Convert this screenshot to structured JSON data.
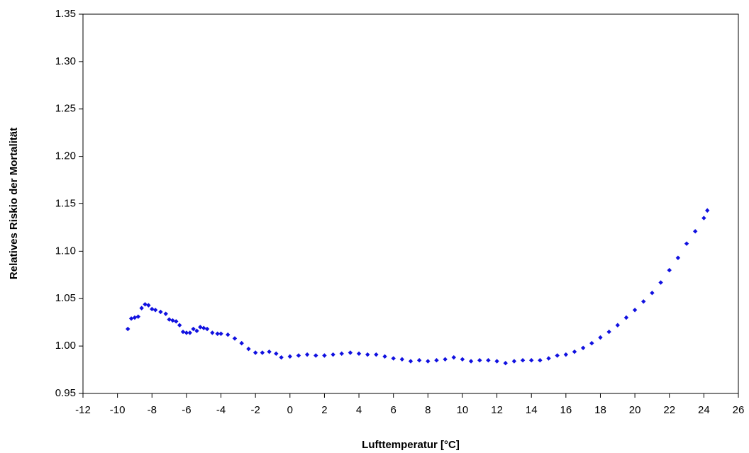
{
  "chart_data": {
    "type": "scatter",
    "xlabel": "Lufttemperatur [°C]",
    "ylabel": "Relatives Riskio der Mortalität",
    "color": "#1010e0",
    "xlim": [
      -12,
      26
    ],
    "xticks": [
      -12,
      -10,
      -8,
      -6,
      -4,
      -2,
      0,
      2,
      4,
      6,
      8,
      10,
      12,
      14,
      16,
      18,
      20,
      22,
      24,
      26
    ],
    "ylim": [
      0.95,
      1.35
    ],
    "yticks": [
      0.95,
      {
        "value": 1.0,
        "label": "1.00"
      },
      1.05,
      {
        "value": 1.1,
        "label": "1.10"
      },
      1.15,
      {
        "value": 1.2,
        "label": "1.20"
      },
      1.25,
      {
        "value": 1.3,
        "label": "1.30"
      },
      1.35
    ],
    "grid": false,
    "x": [
      -9.4,
      -9.2,
      -9.0,
      -8.8,
      -8.6,
      -8.4,
      -8.2,
      -8.0,
      -7.8,
      -7.5,
      -7.2,
      -7.0,
      -6.8,
      -6.6,
      -6.4,
      -6.2,
      -6.0,
      -5.8,
      -5.6,
      -5.4,
      -5.2,
      -5.0,
      -4.8,
      -4.5,
      -4.2,
      -4.0,
      -3.6,
      -3.2,
      -2.8,
      -2.4,
      -2.0,
      -1.6,
      -1.2,
      -0.8,
      -0.5,
      0,
      0.5,
      1,
      1.5,
      2,
      2.5,
      3,
      3.5,
      4,
      4.5,
      5,
      5.5,
      6,
      6.5,
      7,
      7.5,
      8,
      8.5,
      9,
      9.5,
      10,
      10.5,
      11,
      11.5,
      12,
      12.5,
      13,
      13.5,
      14,
      14.5,
      15,
      15.5,
      16,
      16.5,
      17,
      17.5,
      18,
      18.5,
      19,
      19.5,
      20,
      20.5,
      21,
      21.5,
      22,
      22.5,
      23,
      23.5,
      24,
      24.2
    ],
    "values": [
      1.018,
      1.029,
      1.03,
      1.031,
      1.04,
      1.044,
      1.043,
      1.039,
      1.038,
      1.036,
      1.034,
      1.028,
      1.027,
      1.026,
      1.022,
      1.015,
      1.014,
      1.014,
      1.018,
      1.016,
      1.02,
      1.019,
      1.018,
      1.014,
      1.013,
      1.013,
      1.012,
      1.008,
      1.003,
      0.997,
      0.993,
      0.993,
      0.994,
      0.992,
      0.988,
      0.989,
      0.99,
      0.991,
      0.99,
      0.99,
      0.991,
      0.992,
      0.993,
      0.992,
      0.991,
      0.991,
      0.989,
      0.987,
      0.986,
      0.984,
      0.985,
      0.984,
      0.985,
      0.986,
      0.988,
      0.986,
      0.984,
      0.985,
      0.985,
      0.984,
      0.982,
      0.984,
      0.985,
      0.985,
      0.985,
      0.987,
      0.99,
      0.991,
      0.994,
      0.998,
      1.003,
      1.009,
      1.015,
      1.022,
      1.03,
      1.038,
      1.047,
      1.056,
      1.067,
      1.08,
      1.093,
      1.108,
      1.121,
      1.135,
      1.143
    ]
  }
}
